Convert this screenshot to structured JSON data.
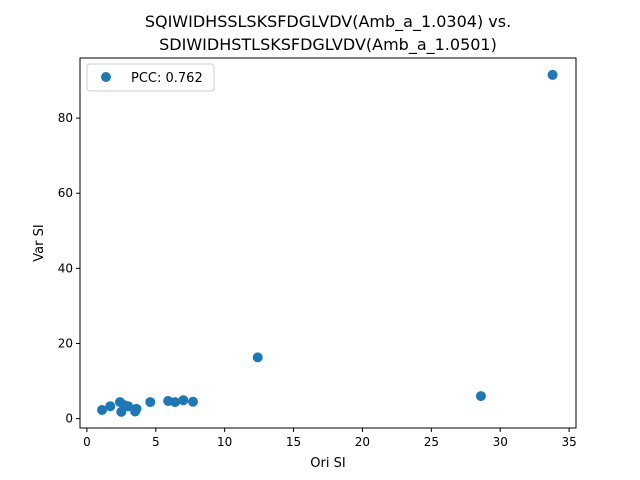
{
  "chart_data": {
    "type": "scatter",
    "title_line1": "SQIWIDHSSLSKSFDGLVDV(Amb_a_1.0304) vs.",
    "title_line2": "SDIWIDHSTLSKSFDGLVDV(Amb_a_1.0501)",
    "xlabel": "Ori SI",
    "ylabel": "Var SI",
    "xlim": [
      -0.5,
      35.5
    ],
    "ylim": [
      -2.5,
      96
    ],
    "xticks": [
      0,
      5,
      10,
      15,
      20,
      25,
      30,
      35
    ],
    "yticks": [
      0,
      20,
      40,
      60,
      80
    ],
    "grid": false,
    "legend_position": "upper-left",
    "marker_color": "#1f77b4",
    "series": [
      {
        "name": "PCC: 0.762",
        "points": [
          {
            "x": 1.1,
            "y": 2.3
          },
          {
            "x": 1.7,
            "y": 3.3
          },
          {
            "x": 2.4,
            "y": 4.4
          },
          {
            "x": 2.5,
            "y": 1.8
          },
          {
            "x": 2.7,
            "y": 3.6
          },
          {
            "x": 3.0,
            "y": 3.3
          },
          {
            "x": 3.5,
            "y": 1.9
          },
          {
            "x": 3.6,
            "y": 2.6
          },
          {
            "x": 4.6,
            "y": 4.4
          },
          {
            "x": 5.9,
            "y": 4.7
          },
          {
            "x": 6.4,
            "y": 4.4
          },
          {
            "x": 7.0,
            "y": 4.9
          },
          {
            "x": 7.7,
            "y": 4.5
          },
          {
            "x": 12.4,
            "y": 16.3
          },
          {
            "x": 28.6,
            "y": 6.0
          },
          {
            "x": 33.8,
            "y": 91.5
          }
        ]
      }
    ]
  }
}
